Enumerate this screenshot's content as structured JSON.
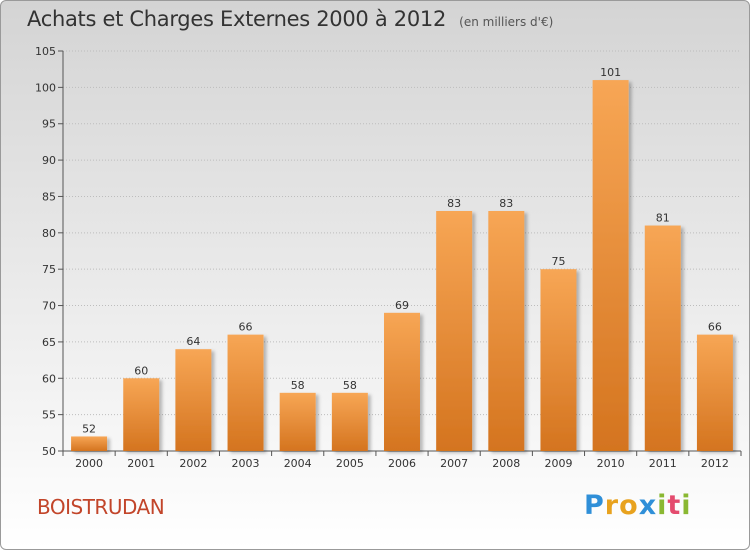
{
  "page": {
    "title": "Achats et Charges Externes 2000 à 2012",
    "subtitle": "(en milliers d'€)",
    "commune": "BOISTRUDAN"
  },
  "logo": {
    "letters": [
      {
        "char": "P",
        "color": "#2f8fd8"
      },
      {
        "char": "r",
        "color": "#e8a21e"
      },
      {
        "char": "o",
        "color": "#e8a21e"
      },
      {
        "char": "x",
        "color": "#2f8fd8"
      },
      {
        "char": "i",
        "color": "#8ab832"
      },
      {
        "char": "t",
        "color": "#e44b6e"
      },
      {
        "char": "i",
        "color": "#8ab832"
      }
    ]
  },
  "chart_data": {
    "type": "bar",
    "categories": [
      "2000",
      "2001",
      "2002",
      "2003",
      "2004",
      "2005",
      "2006",
      "2007",
      "2008",
      "2009",
      "2010",
      "2011",
      "2012"
    ],
    "values": [
      52,
      60,
      64,
      66,
      58,
      58,
      69,
      83,
      83,
      75,
      101,
      81,
      66
    ],
    "ylim": [
      50,
      105
    ],
    "yticks": [
      50,
      55,
      60,
      65,
      70,
      75,
      80,
      85,
      90,
      95,
      100,
      105
    ],
    "grid": true,
    "data_labels": true,
    "colors": {
      "bar_light": "#f7a655",
      "bar_dark": "#d4741f",
      "grid": "#bdbdbd"
    }
  }
}
